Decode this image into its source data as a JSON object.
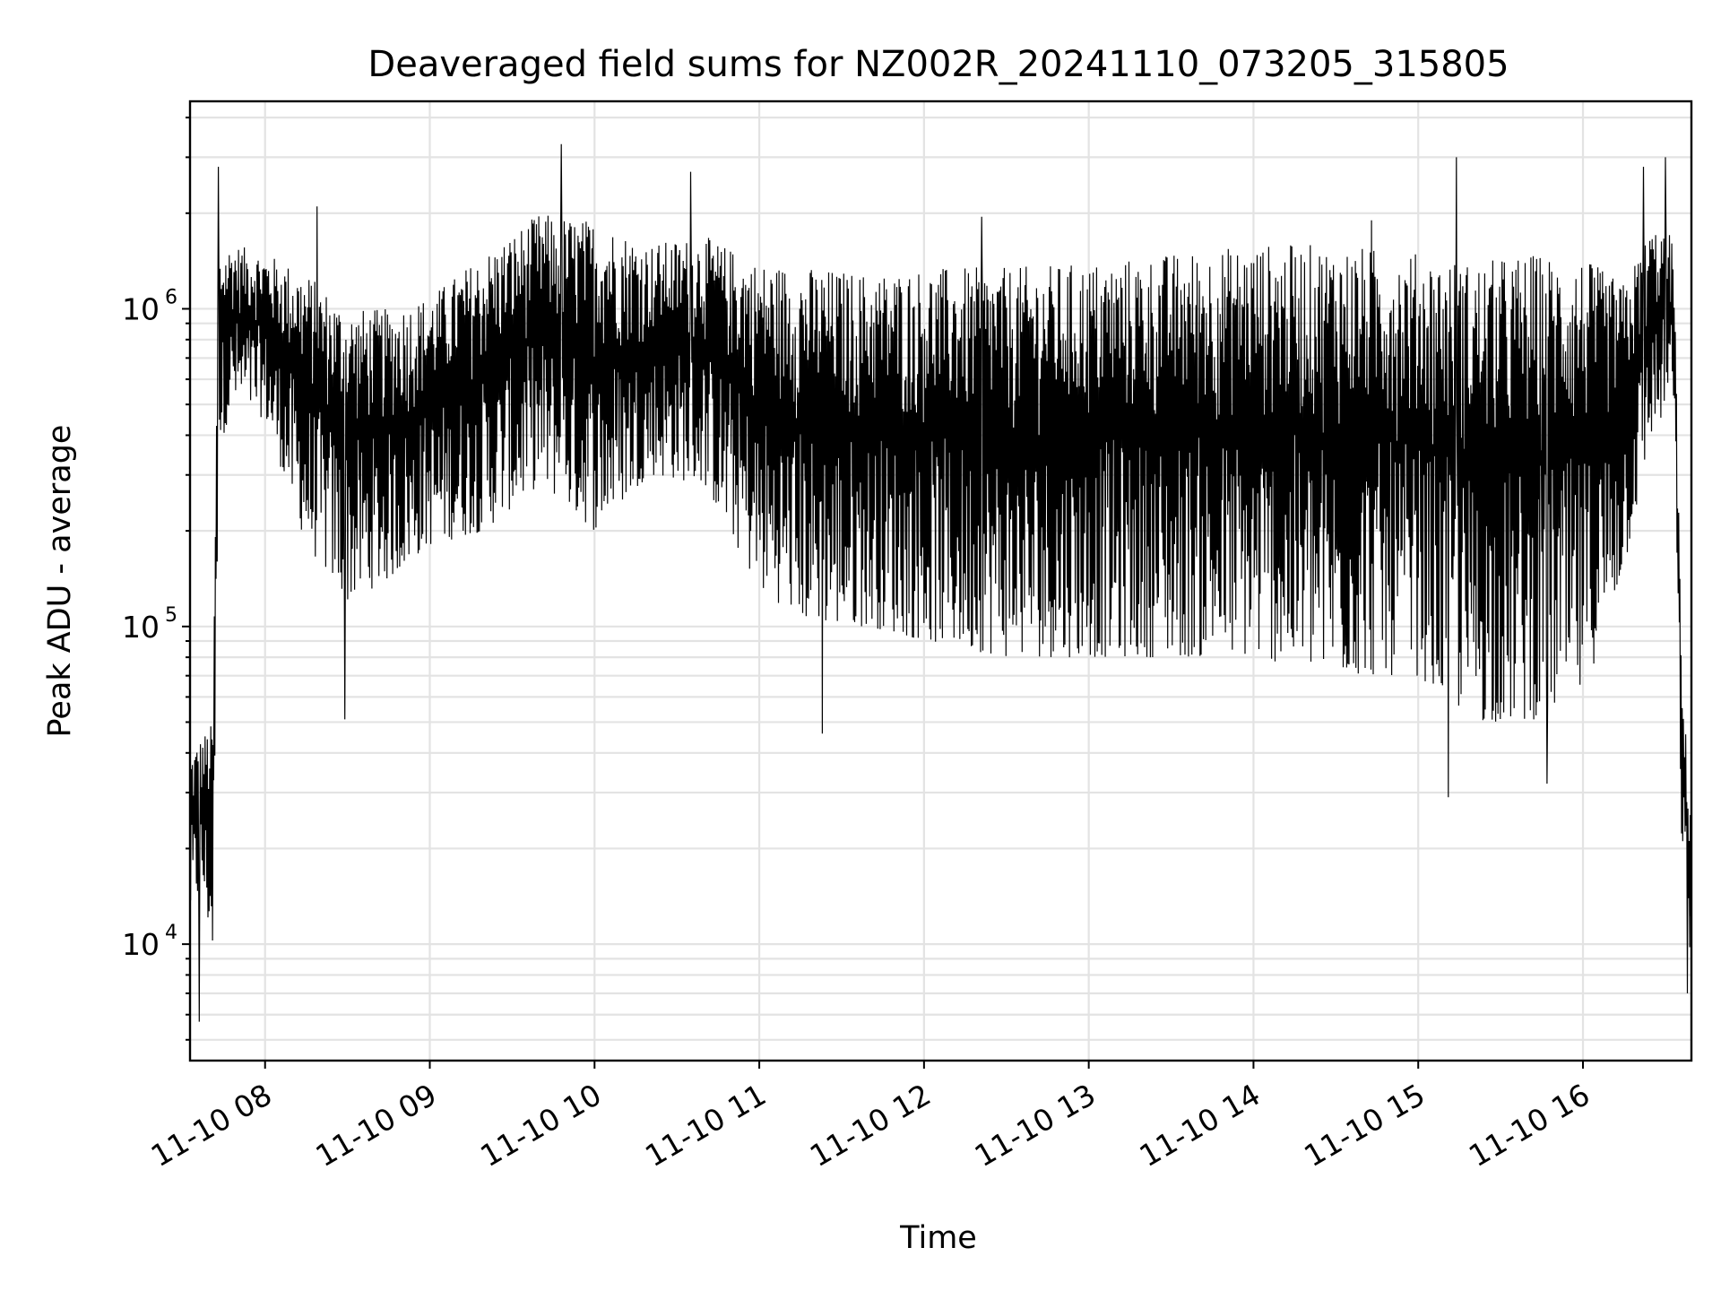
{
  "chart_data": {
    "type": "line",
    "title": "Deaveraged field sums for NZ002R_20241110_073205_315805",
    "xlabel": "Time",
    "ylabel": "Peak ADU - average",
    "yscale": "log",
    "ylim": [
      4300,
      4500000
    ],
    "xlim": [
      "2024-11-10 07:32:40",
      "2024-11-10 16:39:30"
    ],
    "grid": true,
    "line_color": "#000000",
    "x_ticks": [
      "11-10 08",
      "11-10 09",
      "11-10 10",
      "11-10 11",
      "11-10 12",
      "11-10 13",
      "11-10 14",
      "11-10 15",
      "11-10 16"
    ],
    "x_tick_times": [
      "2024-11-10 08:00",
      "2024-11-10 09:00",
      "2024-11-10 10:00",
      "2024-11-10 11:00",
      "2024-11-10 12:00",
      "2024-11-10 13:00",
      "2024-11-10 14:00",
      "2024-11-10 15:00",
      "2024-11-10 16:00"
    ],
    "y_ticks": [
      {
        "value": 10000,
        "base": "10",
        "exp": "4"
      },
      {
        "value": 100000,
        "base": "10",
        "exp": "5"
      },
      {
        "value": 1000000,
        "base": "10",
        "exp": "6"
      }
    ],
    "envelope": {
      "x": [
        "2024-11-10 07:32:40",
        "2024-11-10 07:37:00",
        "2024-11-10 07:41:00",
        "2024-11-10 07:43:00",
        "2024-11-10 07:48:00",
        "2024-11-10 08:00:00",
        "2024-11-10 08:15:00",
        "2024-11-10 08:30:00",
        "2024-11-10 08:45:00",
        "2024-11-10 09:00:00",
        "2024-11-10 09:20:00",
        "2024-11-10 09:40:00",
        "2024-11-10 10:00:00",
        "2024-11-10 10:20:00",
        "2024-11-10 10:40:00",
        "2024-11-10 11:00:00",
        "2024-11-10 11:20:00",
        "2024-11-10 11:40:00",
        "2024-11-10 12:00:00",
        "2024-11-10 12:30:00",
        "2024-11-10 13:00:00",
        "2024-11-10 13:30:00",
        "2024-11-10 14:00:00",
        "2024-11-10 14:30:00",
        "2024-11-10 15:00:00",
        "2024-11-10 15:20:00",
        "2024-11-10 15:40:00",
        "2024-11-10 16:00:00",
        "2024-11-10 16:15:00",
        "2024-11-10 16:25:00",
        "2024-11-10 16:33:00",
        "2024-11-10 16:36:00",
        "2024-11-10 16:39:30"
      ],
      "upper": [
        40000,
        45000,
        50000,
        1500000,
        1600000,
        1500000,
        1300000,
        1000000,
        1000000,
        1100000,
        1500000,
        2000000,
        1900000,
        1600000,
        1700000,
        1400000,
        1350000,
        1300000,
        1350000,
        1350000,
        1400000,
        1500000,
        1600000,
        1600000,
        1500000,
        1400000,
        1500000,
        1450000,
        1200000,
        1800000,
        1700000,
        70000,
        25000
      ],
      "lower": [
        12000,
        15000,
        9000,
        350000,
        500000,
        450000,
        180000,
        120000,
        140000,
        180000,
        200000,
        280000,
        200000,
        300000,
        280000,
        130000,
        100000,
        100000,
        90000,
        80000,
        80000,
        80000,
        80000,
        70000,
        70000,
        50000,
        50000,
        60000,
        150000,
        400000,
        500000,
        20000,
        8000
      ]
    },
    "spikes": [
      {
        "x": "2024-11-10 07:36:00",
        "y": 5700
      },
      {
        "x": "2024-11-10 07:43:00",
        "y": 2800000
      },
      {
        "x": "2024-11-10 08:19:00",
        "y": 2100000
      },
      {
        "x": "2024-11-10 08:29:00",
        "y": 51000
      },
      {
        "x": "2024-11-10 09:48:00",
        "y": 3300000
      },
      {
        "x": "2024-11-10 10:35:00",
        "y": 2700000
      },
      {
        "x": "2024-11-10 11:23:00",
        "y": 46000
      },
      {
        "x": "2024-11-10 12:21:00",
        "y": 1950000
      },
      {
        "x": "2024-11-10 14:43:00",
        "y": 1900000
      },
      {
        "x": "2024-11-10 15:11:00",
        "y": 29000
      },
      {
        "x": "2024-11-10 15:14:00",
        "y": 3000000
      },
      {
        "x": "2024-11-10 15:47:00",
        "y": 32000
      },
      {
        "x": "2024-11-10 16:22:00",
        "y": 2800000
      },
      {
        "x": "2024-11-10 16:30:00",
        "y": 3000000
      },
      {
        "x": "2024-11-10 16:38:00",
        "y": 7000
      }
    ]
  }
}
